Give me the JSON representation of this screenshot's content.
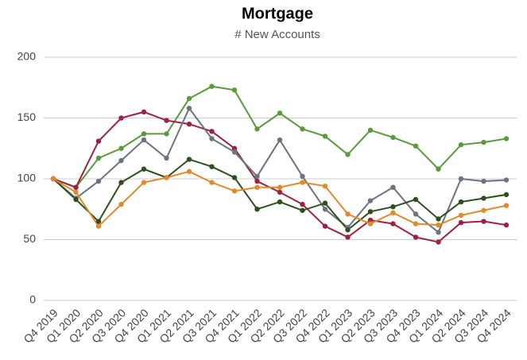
{
  "chart_data": {
    "type": "line",
    "title": "Mortgage",
    "subtitle": "# New Accounts",
    "categories": [
      "Q4 2019",
      "Q1 2020",
      "Q2 2020",
      "Q3 2020",
      "Q4 2020",
      "Q1 2021",
      "Q2 2021",
      "Q3 2021",
      "Q4 2021",
      "Q1 2022",
      "Q2 2022",
      "Q3 2022",
      "Q4 2022",
      "Q1 2023",
      "Q2 2023",
      "Q3 2023",
      "Q4 2023",
      "Q1 2024",
      "Q2 2024",
      "Q3 2024",
      "Q4 2024"
    ],
    "series": [
      {
        "color": "#5b9a3c",
        "values": [
          100,
          93,
          117,
          125,
          137,
          137,
          166,
          176,
          173,
          141,
          154,
          141,
          135,
          120,
          140,
          134,
          127,
          108,
          128,
          130,
          133
        ]
      },
      {
        "color": "#9b2240",
        "values": [
          100,
          93,
          131,
          150,
          155,
          148,
          145,
          139,
          125,
          98,
          89,
          79,
          61,
          52,
          66,
          63,
          52,
          48,
          64,
          65,
          62
        ]
      },
      {
        "color": "#6b7480",
        "values": [
          100,
          84,
          98,
          115,
          132,
          117,
          158,
          133,
          122,
          102,
          132,
          102,
          75,
          60,
          82,
          93,
          71,
          56,
          100,
          98,
          99
        ]
      },
      {
        "color": "#2e5020",
        "values": [
          100,
          83,
          65,
          97,
          108,
          101,
          116,
          110,
          101,
          75,
          81,
          74,
          80,
          58,
          73,
          77,
          83,
          67,
          81,
          84,
          87
        ]
      },
      {
        "color": "#e08a2c",
        "values": [
          100,
          89,
          61,
          79,
          97,
          101,
          106,
          97,
          90,
          93,
          93,
          97,
          94,
          71,
          63,
          72,
          63,
          62,
          70,
          74,
          78
        ]
      }
    ],
    "ylim": [
      0,
      200
    ],
    "yticks": [
      0,
      50,
      100,
      150,
      200
    ],
    "grid": true
  }
}
